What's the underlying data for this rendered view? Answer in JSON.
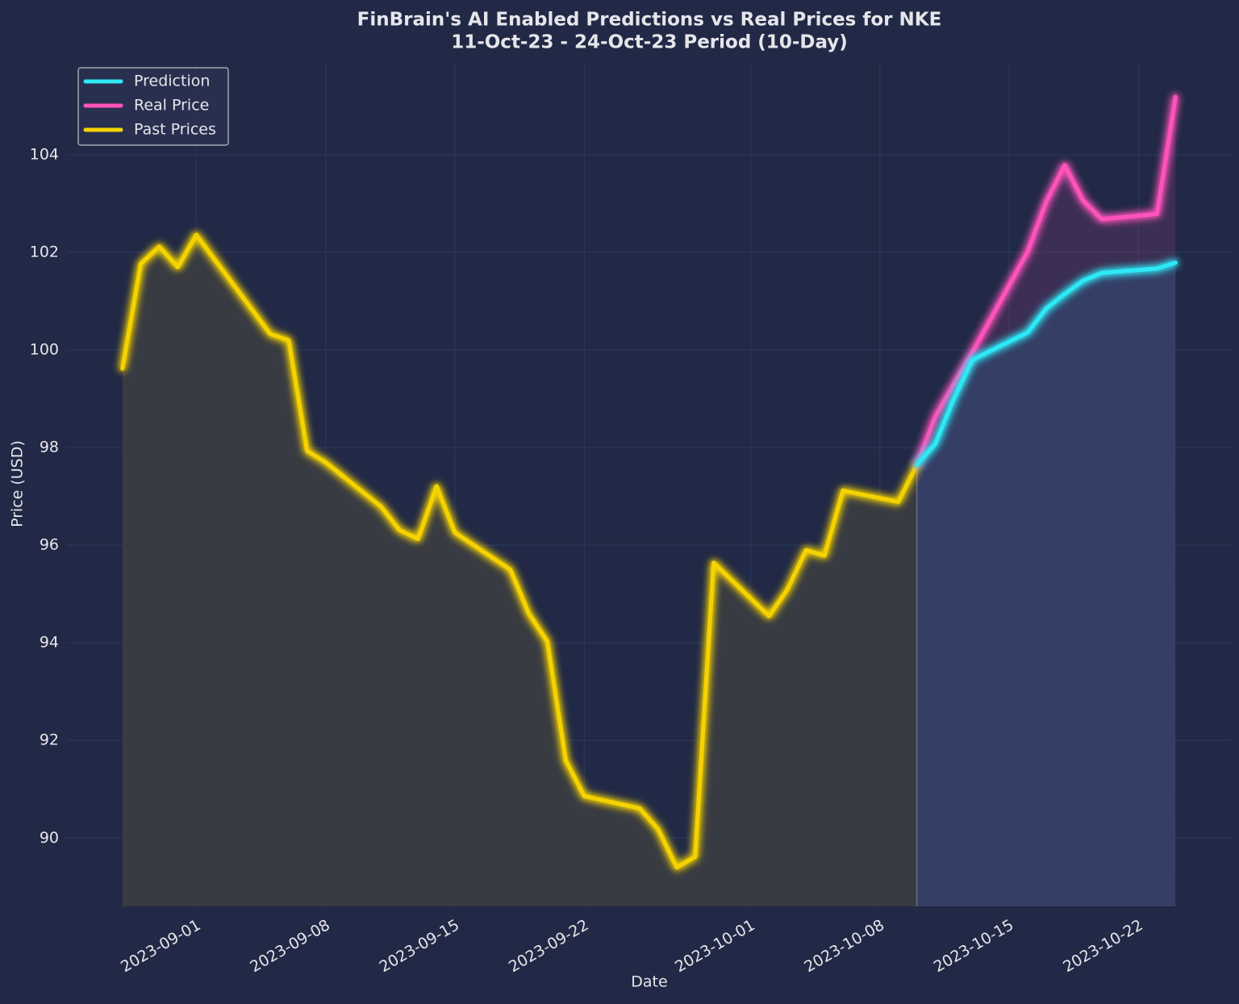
{
  "chart_data": {
    "type": "line",
    "title": "FinBrain's AI Enabled Predictions vs Real Prices for NKE",
    "subtitle": "11-Oct-23 - 24-Oct-23 Period (10-Day)",
    "x_label": "Date",
    "y_label": "Price (USD)",
    "xlim": [
      "2023-08-25",
      "2023-10-27"
    ],
    "xticks": [
      "2023-09-01",
      "2023-09-08",
      "2023-09-15",
      "2023-09-22",
      "2023-10-01",
      "2023-10-08",
      "2023-10-15",
      "2023-10-22"
    ],
    "ylim": [
      88.6,
      105.9
    ],
    "yticks": [
      90,
      92,
      94,
      96,
      98,
      100,
      102,
      104
    ],
    "grid": true,
    "legend": "upper left",
    "series": [
      {
        "name": "Prediction",
        "color": "#2ee8f5",
        "x": [
          "2023-10-10",
          "2023-10-11",
          "2023-10-12",
          "2023-10-13",
          "2023-10-16",
          "2023-10-17",
          "2023-10-18",
          "2023-10-19",
          "2023-10-20",
          "2023-10-23",
          "2023-10-24"
        ],
        "values": [
          97.65,
          98.08,
          99.0,
          99.8,
          100.36,
          100.85,
          101.15,
          101.42,
          101.58,
          101.67,
          101.79
        ]
      },
      {
        "name": "Real Price",
        "color": "#fe53bb",
        "x": [
          "2023-10-10",
          "2023-10-11",
          "2023-10-12",
          "2023-10-13",
          "2023-10-16",
          "2023-10-17",
          "2023-10-18",
          "2023-10-19",
          "2023-10-20",
          "2023-10-23",
          "2023-10-24"
        ],
        "values": [
          97.65,
          98.64,
          99.3,
          99.95,
          102.02,
          103.04,
          103.79,
          103.06,
          102.68,
          102.79,
          105.19
        ]
      },
      {
        "name": "Past Prices",
        "color": "#f5d300",
        "x": [
          "2023-08-28",
          "2023-08-29",
          "2023-08-30",
          "2023-08-31",
          "2023-09-01",
          "2023-09-05",
          "2023-09-06",
          "2023-09-07",
          "2023-09-08",
          "2023-09-11",
          "2023-09-12",
          "2023-09-13",
          "2023-09-14",
          "2023-09-15",
          "2023-09-18",
          "2023-09-19",
          "2023-09-20",
          "2023-09-21",
          "2023-09-22",
          "2023-09-25",
          "2023-09-26",
          "2023-09-27",
          "2023-09-28",
          "2023-09-29",
          "2023-10-02",
          "2023-10-03",
          "2023-10-04",
          "2023-10-05",
          "2023-10-06",
          "2023-10-09",
          "2023-10-10"
        ],
        "values": [
          99.62,
          101.77,
          102.12,
          101.7,
          102.36,
          100.33,
          100.2,
          97.93,
          97.7,
          96.79,
          96.31,
          96.13,
          97.21,
          96.26,
          95.5,
          94.6,
          94.03,
          91.59,
          90.86,
          90.61,
          90.18,
          89.4,
          89.62,
          95.64,
          94.55,
          95.1,
          95.9,
          95.79,
          97.12,
          96.89,
          97.65
        ]
      }
    ]
  }
}
